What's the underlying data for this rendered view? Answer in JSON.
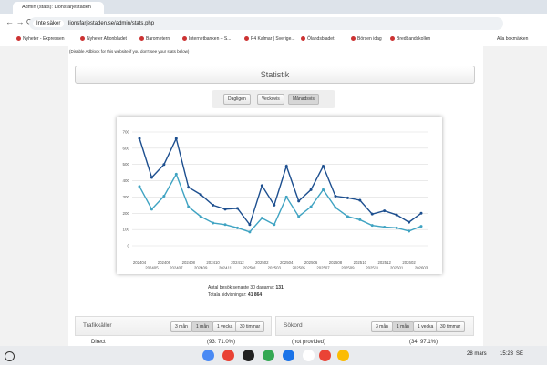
{
  "browser": {
    "tab_title": "Admin (stats): Lionsfärjestaden",
    "security": "Inte säker",
    "url": "lionsfarjestaden.se/admin/stats.php",
    "bookmarks": [
      "Nyheter - Expressen",
      "Nyheter Aftonbladet",
      "Barometern",
      "Internetbanken – S...",
      "P4 Kalmar | Sverige...",
      "Ölandsbladet",
      "Börsen idag",
      "Bredbandskollen"
    ],
    "all_bookmarks": "Alla bokmärken"
  },
  "page": {
    "notice": "(Disable Adblock for this website if you don't see your stats below)",
    "title": "Statistik",
    "periods": [
      "Dagligen",
      "Veckovis",
      "Månadsvis"
    ],
    "visits_label": "Antal besök senaste 30 dagarna:",
    "visits": 131,
    "pageviews_label": "Totala sidvisningar:",
    "pageviews": "41 864",
    "panels": [
      {
        "title": "Trafikkällor",
        "ranges": [
          "3 mån",
          "1 mån",
          "1 vecka",
          "30 timmar"
        ],
        "rows": [
          {
            "label": "Direct",
            "value": "(93: 71.0%)"
          }
        ]
      },
      {
        "title": "Sökord",
        "ranges": [
          "3 mån",
          "1 mån",
          "1 vecka",
          "30 timmar"
        ],
        "rows": [
          {
            "label": "(not provided)",
            "value": "(34: 97.1%)"
          }
        ]
      }
    ]
  },
  "taskbar": {
    "date": "28 mars",
    "time": "15:23",
    "lang": "SE"
  },
  "chart_data": {
    "type": "line",
    "categories": [
      "202404",
      "202405",
      "202406",
      "202407",
      "202408",
      "202409",
      "202410",
      "202411",
      "202412",
      "202501",
      "202502",
      "202503",
      "202504",
      "202505",
      "202506",
      "202507",
      "202508",
      "202509",
      "202510",
      "202511",
      "202512",
      "202601",
      "202602",
      "202603"
    ],
    "series": [
      {
        "color": "#1d4f8f",
        "values": [
          660,
          420,
          500,
          660,
          360,
          315,
          250,
          225,
          230,
          130,
          370,
          250,
          490,
          275,
          345,
          490,
          305,
          295,
          280,
          195,
          215,
          190,
          145,
          200
        ]
      },
      {
        "color": "#3fa3c2",
        "values": [
          365,
          225,
          305,
          440,
          240,
          180,
          140,
          130,
          110,
          85,
          170,
          130,
          300,
          180,
          240,
          345,
          235,
          180,
          160,
          125,
          115,
          110,
          90,
          120
        ]
      }
    ],
    "ylim": [
      0,
      700
    ],
    "yticks": [
      0,
      100,
      200,
      300,
      400,
      500,
      600,
      700
    ],
    "grid": true
  }
}
